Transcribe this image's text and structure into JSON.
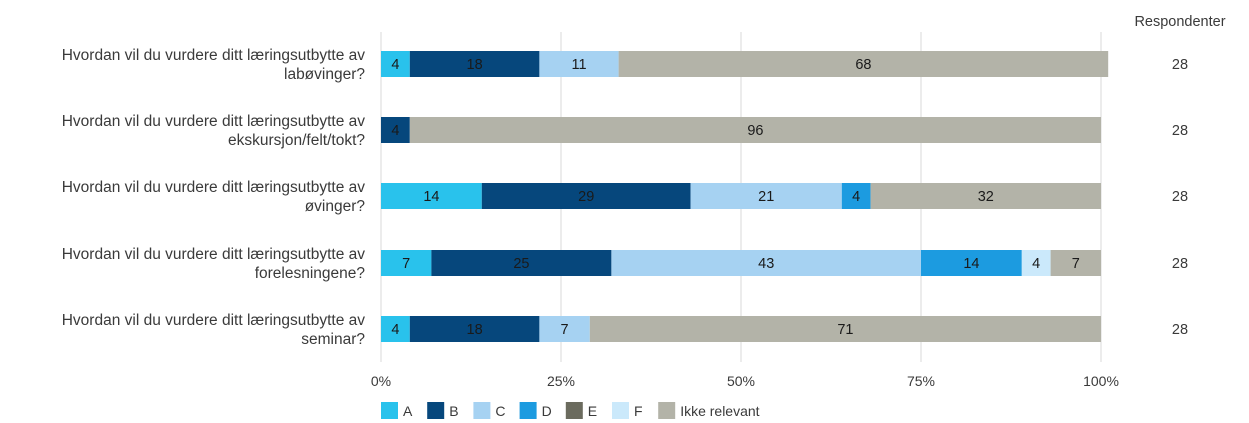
{
  "chart_data": {
    "type": "bar",
    "orientation": "horizontal",
    "stacked": true,
    "percent_scale": true,
    "categories": [
      [
        "Hvordan vil du vurdere ditt læringsutbytte av",
        "labøvinger?"
      ],
      [
        "Hvordan vil du vurdere ditt læringsutbytte av",
        "ekskursjon/felt/tokt?"
      ],
      [
        "Hvordan vil du vurdere ditt læringsutbytte av",
        "øvinger?"
      ],
      [
        "Hvordan vil du vurdere ditt læringsutbytte av",
        "forelesningene?"
      ],
      [
        "Hvordan vil du vurdere ditt læringsutbytte av",
        "seminar?"
      ]
    ],
    "series": [
      {
        "name": "A",
        "color": "#29c2ec",
        "label_color": "#1a1a1a",
        "values": [
          4,
          0,
          14,
          7,
          4
        ]
      },
      {
        "name": "B",
        "color": "#06477c",
        "label_color": "#1a1a1a",
        "values": [
          18,
          4,
          29,
          25,
          18
        ]
      },
      {
        "name": "C",
        "color": "#a6d2f2",
        "label_color": "#1a1a1a",
        "values": [
          11,
          0,
          21,
          43,
          7
        ]
      },
      {
        "name": "D",
        "color": "#1c9be0",
        "label_color": "#1a1a1a",
        "values": [
          0,
          0,
          4,
          14,
          0
        ]
      },
      {
        "name": "E",
        "color": "#6b6b5e",
        "label_color": "#1a1a1a",
        "values": [
          0,
          0,
          0,
          0,
          0
        ]
      },
      {
        "name": "F",
        "color": "#cbe9fb",
        "label_color": "#1a1a1a",
        "values": [
          0,
          0,
          0,
          4,
          0
        ]
      },
      {
        "name": "Ikke relevant",
        "color": "#b3b3a8",
        "label_color": "#1a1a1a",
        "values": [
          68,
          96,
          32,
          7,
          71
        ]
      }
    ],
    "xlim": [
      0,
      100
    ],
    "xticks": [
      "0%",
      "25%",
      "50%",
      "75%",
      "100%"
    ],
    "grid": true,
    "legend": "bottom-left",
    "respondents_header": "Respondenter",
    "respondents": [
      28,
      28,
      28,
      28,
      28
    ]
  }
}
